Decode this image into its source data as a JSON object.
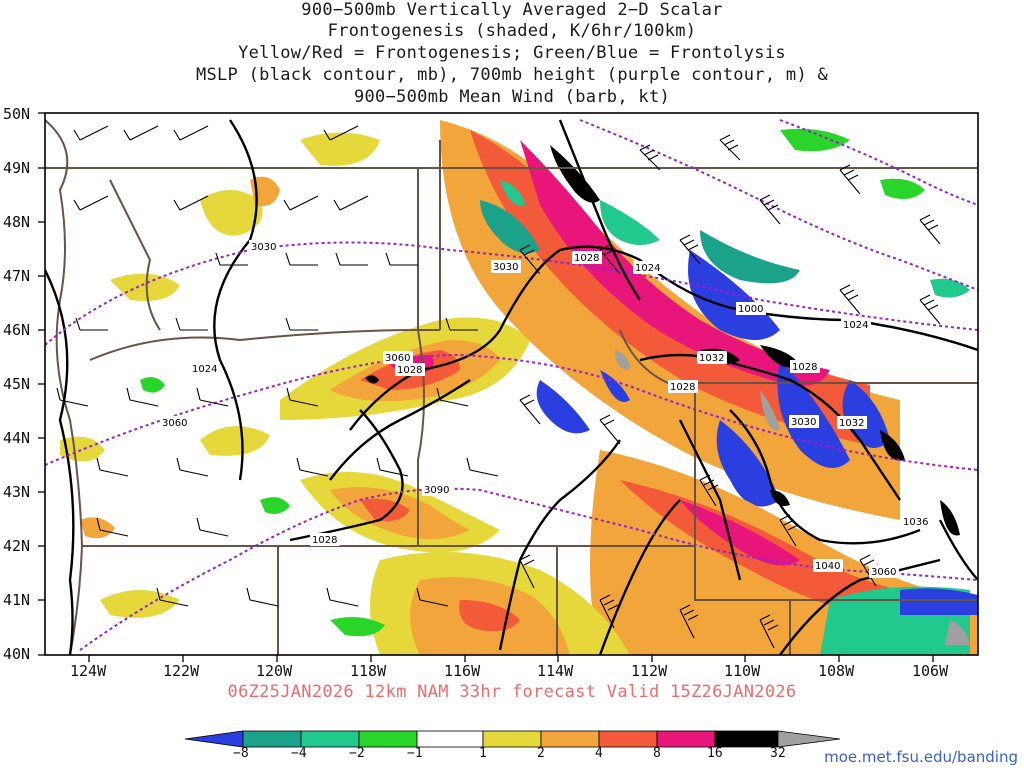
{
  "title_lines": [
    "900−500mb Vertically Averaged 2−D Scalar",
    "Frontogenesis (shaded, K/6hr/100km)",
    "Yellow/Red = Frontogenesis;  Green/Blue = Frontolysis",
    "MSLP (black contour, mb), 700mb height (purple contour, m) &",
    "900−500mb Mean Wind (barb, kt)"
  ],
  "lat_labels": [
    "50N",
    "49N",
    "48N",
    "47N",
    "46N",
    "45N",
    "44N",
    "43N",
    "42N",
    "41N",
    "40N"
  ],
  "lon_labels": [
    "124W",
    "122W",
    "120W",
    "118W",
    "116W",
    "114W",
    "112W",
    "110W",
    "108W",
    "106W"
  ],
  "valid_text": "06Z25JAN2026 12km NAM 33hr forecast Valid 15Z26JAN2026",
  "colorbar": {
    "labels": [
      "−8",
      "−4",
      "−2",
      "−1",
      "1",
      "2",
      "4",
      "8",
      "16",
      "32"
    ],
    "colors": [
      "#2b3fe0",
      "#1aa38a",
      "#22c98c",
      "#2ad52a",
      "#ffffff",
      "#e6d83a",
      "#f2a53a",
      "#f25a3a",
      "#e8157a",
      "#000000",
      "#a0a0a0"
    ]
  },
  "mslp_labels": [
    "1028",
    "1024",
    "1000",
    "1032",
    "1028",
    "1028",
    "1024",
    "1028",
    "1032",
    "1036",
    "1040",
    "1028",
    "1024"
  ],
  "height_labels": [
    "3030",
    "3030",
    "3060",
    "3060",
    "3090",
    "3030",
    "3060"
  ],
  "credit": "moe.met.fsu.edu/banding"
}
